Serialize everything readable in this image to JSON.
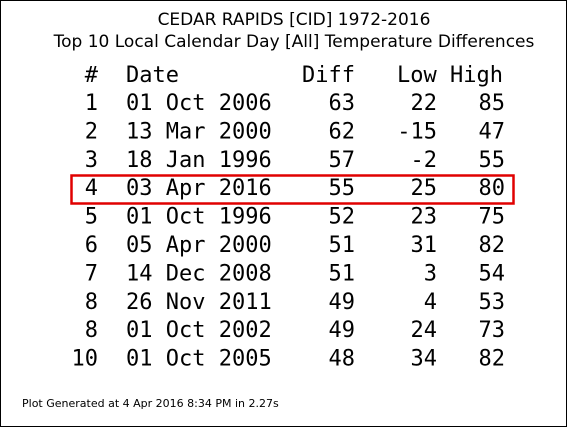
{
  "header": {
    "title": "CEDAR RAPIDS [CID] 1972-2016",
    "subtitle": "Top 10 Local Calendar Day [All] Temperature Differences"
  },
  "table": {
    "columns": [
      "#",
      "Date",
      "Diff",
      "Low",
      "High"
    ],
    "rows": [
      [
        1,
        "01 Oct 2006",
        63,
        22,
        85
      ],
      [
        2,
        "13 Mar 2000",
        62,
        -15,
        47
      ],
      [
        3,
        "18 Jan 1996",
        57,
        -2,
        55
      ],
      [
        4,
        "03 Apr 2016",
        55,
        25,
        80
      ],
      [
        5,
        "01 Oct 1996",
        52,
        23,
        75
      ],
      [
        6,
        "05 Apr 2000",
        51,
        31,
        82
      ],
      [
        7,
        "14 Dec 2008",
        51,
        3,
        54
      ],
      [
        8,
        "26 Nov 2011",
        49,
        4,
        53
      ],
      [
        8,
        "01 Oct 2002",
        49,
        24,
        73
      ],
      [
        10,
        "01 Oct 2005",
        48,
        34,
        82
      ]
    ]
  },
  "footer": "Plot Generated at 4 Apr 2016 8:34 PM in 2.27s"
}
